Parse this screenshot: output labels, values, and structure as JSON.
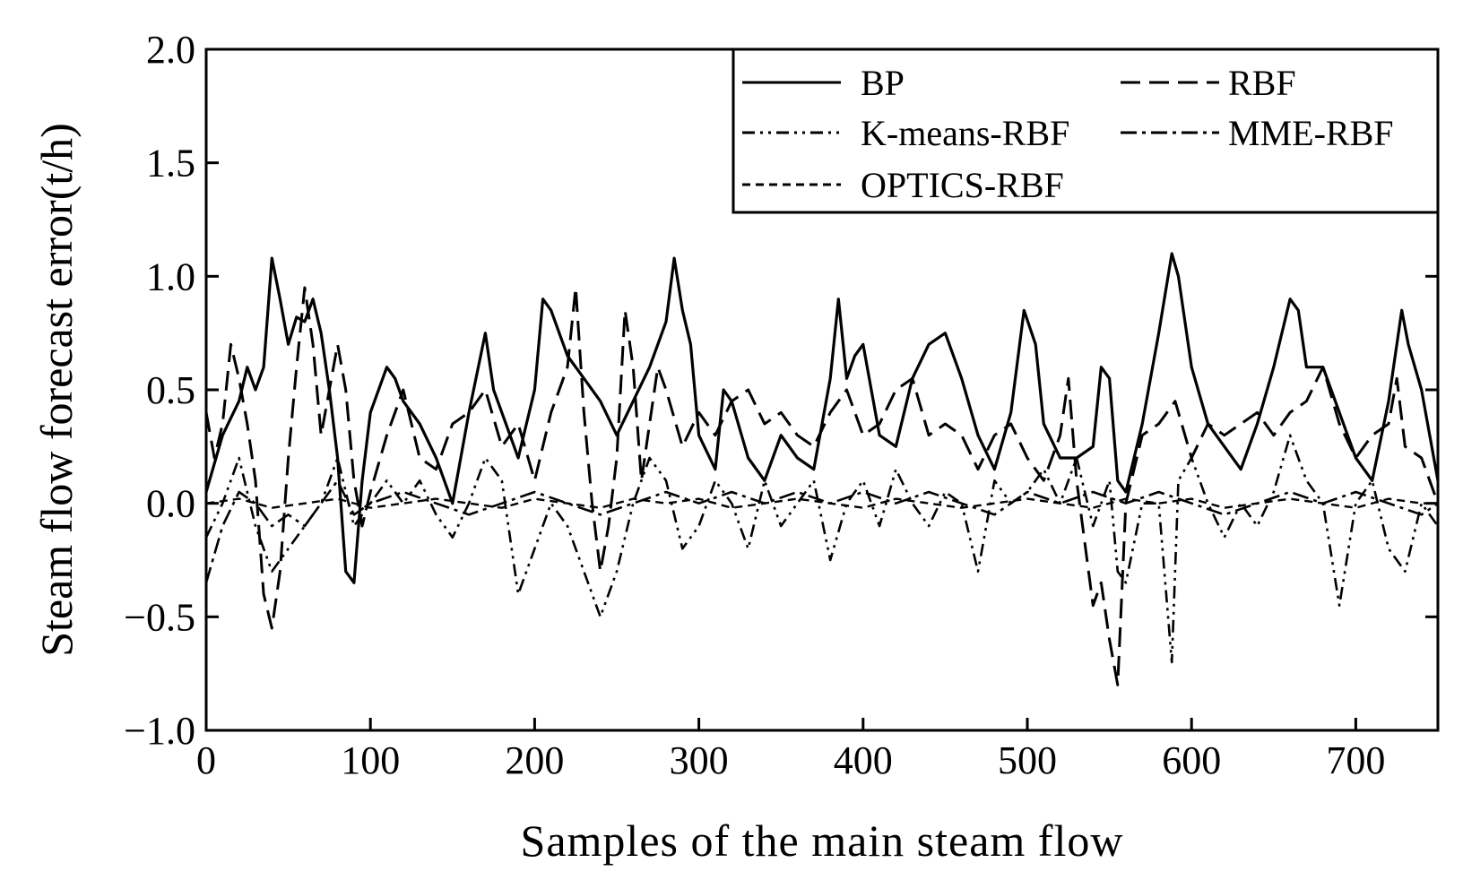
{
  "chart_data": {
    "type": "line",
    "title": "",
    "xlabel": "Samples of the main steam flow",
    "ylabel": "Steam flow forecast error(t/h)",
    "xlim": [
      0,
      750
    ],
    "ylim": [
      -1.0,
      2.0
    ],
    "xticks": [
      0,
      100,
      200,
      300,
      400,
      500,
      600,
      700
    ],
    "xtick_labels": [
      "0",
      "100",
      "200",
      "300",
      "400",
      "500",
      "600",
      "700"
    ],
    "yticks": [
      -1.0,
      -0.5,
      0.0,
      0.5,
      1.0,
      1.5,
      2.0
    ],
    "ytick_labels": [
      "−1.0",
      "−0.5",
      "0.0",
      "0.5",
      "1.0",
      "1.5",
      "2.0"
    ],
    "grid": false,
    "legend_position": "top-right",
    "series": [
      {
        "name": "BP",
        "style": "solid",
        "x": [
          0,
          10,
          20,
          25,
          30,
          35,
          40,
          45,
          50,
          55,
          60,
          65,
          70,
          75,
          80,
          85,
          90,
          95,
          100,
          110,
          115,
          120,
          130,
          140,
          150,
          160,
          170,
          175,
          180,
          190,
          200,
          205,
          210,
          220,
          230,
          240,
          250,
          260,
          270,
          280,
          285,
          290,
          295,
          300,
          310,
          315,
          320,
          330,
          340,
          350,
          360,
          370,
          380,
          385,
          390,
          395,
          400,
          410,
          420,
          430,
          440,
          450,
          460,
          470,
          480,
          490,
          498,
          505,
          510,
          520,
          530,
          540,
          545,
          550,
          555,
          560,
          570,
          580,
          588,
          592,
          600,
          610,
          620,
          630,
          640,
          650,
          660,
          665,
          670,
          680,
          690,
          700,
          710,
          720,
          728,
          732,
          740,
          750
        ],
        "values": [
          0.05,
          0.3,
          0.45,
          0.6,
          0.5,
          0.6,
          1.08,
          0.9,
          0.7,
          0.82,
          0.8,
          0.9,
          0.75,
          0.5,
          0.2,
          -0.3,
          -0.35,
          0.1,
          0.4,
          0.6,
          0.55,
          0.45,
          0.35,
          0.2,
          0.0,
          0.4,
          0.75,
          0.5,
          0.4,
          0.2,
          0.5,
          0.9,
          0.85,
          0.65,
          0.55,
          0.45,
          0.3,
          0.45,
          0.6,
          0.8,
          1.08,
          0.85,
          0.7,
          0.3,
          0.15,
          0.5,
          0.45,
          0.2,
          0.1,
          0.3,
          0.2,
          0.15,
          0.55,
          0.9,
          0.55,
          0.65,
          0.7,
          0.3,
          0.25,
          0.55,
          0.7,
          0.75,
          0.55,
          0.3,
          0.15,
          0.4,
          0.85,
          0.7,
          0.35,
          0.2,
          0.2,
          0.25,
          0.6,
          0.55,
          0.1,
          0.05,
          0.35,
          0.75,
          1.1,
          1.0,
          0.6,
          0.35,
          0.25,
          0.15,
          0.35,
          0.6,
          0.9,
          0.85,
          0.6,
          0.6,
          0.4,
          0.2,
          0.1,
          0.45,
          0.85,
          0.7,
          0.5,
          0.1
        ]
      },
      {
        "name": "RBF",
        "style": "dashed",
        "x": [
          0,
          5,
          10,
          15,
          20,
          25,
          30,
          35,
          40,
          45,
          50,
          55,
          60,
          65,
          70,
          75,
          80,
          85,
          90,
          95,
          100,
          110,
          120,
          130,
          140,
          150,
          160,
          170,
          180,
          190,
          200,
          210,
          220,
          225,
          230,
          235,
          240,
          245,
          250,
          255,
          260,
          265,
          270,
          275,
          280,
          290,
          300,
          310,
          320,
          330,
          340,
          350,
          360,
          370,
          380,
          390,
          400,
          410,
          420,
          430,
          440,
          450,
          460,
          470,
          480,
          490,
          500,
          510,
          520,
          525,
          530,
          540,
          545,
          550,
          555,
          560,
          570,
          580,
          590,
          600,
          610,
          620,
          630,
          640,
          650,
          660,
          670,
          680,
          690,
          700,
          710,
          720,
          725,
          730,
          740,
          750
        ],
        "values": [
          0.4,
          0.2,
          0.35,
          0.7,
          0.55,
          0.35,
          0.1,
          -0.4,
          -0.55,
          -0.3,
          0.2,
          0.6,
          0.95,
          0.7,
          0.3,
          0.5,
          0.7,
          0.5,
          0.1,
          -0.1,
          0.05,
          0.3,
          0.5,
          0.2,
          0.15,
          0.35,
          0.4,
          0.5,
          0.25,
          0.35,
          0.1,
          0.4,
          0.6,
          0.95,
          0.4,
          0.0,
          -0.3,
          -0.1,
          0.2,
          0.85,
          0.6,
          0.1,
          0.35,
          0.6,
          0.5,
          0.25,
          0.4,
          0.3,
          0.45,
          0.5,
          0.35,
          0.4,
          0.3,
          0.25,
          0.4,
          0.5,
          0.3,
          0.35,
          0.5,
          0.55,
          0.3,
          0.35,
          0.3,
          0.15,
          0.3,
          0.35,
          0.2,
          0.1,
          0.3,
          0.55,
          0.1,
          -0.45,
          -0.35,
          -0.6,
          -0.8,
          0.0,
          0.3,
          0.35,
          0.45,
          0.2,
          0.35,
          0.3,
          0.35,
          0.4,
          0.3,
          0.4,
          0.45,
          0.6,
          0.35,
          0.2,
          0.3,
          0.35,
          0.55,
          0.25,
          0.2,
          0.0
        ]
      },
      {
        "name": "K-means-RBF",
        "style": "dash-dot-dot",
        "x": [
          0,
          10,
          20,
          30,
          40,
          50,
          60,
          70,
          80,
          90,
          100,
          110,
          120,
          130,
          140,
          150,
          160,
          170,
          180,
          190,
          200,
          210,
          220,
          230,
          240,
          250,
          260,
          270,
          280,
          290,
          300,
          310,
          320,
          330,
          340,
          350,
          360,
          370,
          380,
          390,
          400,
          410,
          420,
          430,
          440,
          450,
          460,
          470,
          480,
          490,
          500,
          510,
          520,
          530,
          540,
          550,
          555,
          560,
          570,
          580,
          588,
          592,
          600,
          610,
          620,
          630,
          640,
          650,
          660,
          670,
          680,
          690,
          700,
          710,
          720,
          730,
          740,
          750
        ],
        "values": [
          -0.15,
          0.0,
          0.2,
          -0.1,
          -0.3,
          -0.2,
          -0.1,
          0.0,
          0.2,
          -0.1,
          0.0,
          0.1,
          0.0,
          0.1,
          -0.05,
          -0.15,
          0.0,
          0.2,
          0.1,
          -0.4,
          -0.2,
          0.0,
          -0.1,
          -0.3,
          -0.5,
          -0.3,
          0.0,
          0.2,
          0.1,
          -0.2,
          -0.1,
          0.1,
          0.0,
          -0.2,
          0.1,
          -0.1,
          0.0,
          0.1,
          -0.25,
          0.0,
          0.1,
          -0.1,
          0.15,
          0.0,
          -0.1,
          0.05,
          0.0,
          -0.3,
          0.1,
          0.0,
          0.05,
          0.15,
          0.0,
          0.2,
          -0.1,
          0.1,
          -0.3,
          -0.35,
          0.0,
          0.0,
          -0.7,
          0.1,
          0.2,
          0.0,
          -0.15,
          0.0,
          -0.1,
          0.05,
          0.3,
          0.1,
          0.0,
          -0.45,
          0.0,
          0.1,
          -0.2,
          -0.3,
          0.0,
          -0.1
        ]
      },
      {
        "name": "MME-RBF",
        "style": "dash-dot",
        "x": [
          0,
          10,
          20,
          30,
          40,
          50,
          60,
          70,
          80,
          90,
          100,
          120,
          140,
          160,
          180,
          200,
          220,
          240,
          260,
          280,
          300,
          320,
          340,
          360,
          380,
          400,
          420,
          440,
          460,
          480,
          500,
          520,
          540,
          560,
          580,
          600,
          620,
          640,
          660,
          680,
          700,
          720,
          740,
          750
        ],
        "values": [
          -0.35,
          -0.1,
          0.05,
          0.0,
          -0.1,
          -0.05,
          -0.1,
          0.0,
          0.1,
          -0.05,
          0.0,
          0.05,
          0.0,
          -0.05,
          0.0,
          0.05,
          0.0,
          -0.05,
          0.0,
          0.05,
          0.0,
          0.05,
          0.0,
          0.05,
          0.0,
          0.05,
          0.0,
          0.05,
          0.0,
          -0.05,
          0.05,
          0.0,
          0.05,
          0.0,
          0.05,
          0.0,
          -0.05,
          0.0,
          0.05,
          0.0,
          0.05,
          0.0,
          -0.05,
          0.0
        ]
      },
      {
        "name": "OPTICS-RBF",
        "style": "short-dashed",
        "x": [
          0,
          20,
          40,
          60,
          80,
          100,
          120,
          140,
          160,
          180,
          200,
          220,
          240,
          260,
          280,
          300,
          320,
          340,
          360,
          380,
          400,
          420,
          440,
          460,
          480,
          500,
          520,
          540,
          560,
          580,
          600,
          620,
          640,
          660,
          680,
          700,
          720,
          740,
          750
        ],
        "values": [
          0.0,
          0.02,
          -0.02,
          0.0,
          0.02,
          -0.02,
          0.0,
          0.02,
          0.0,
          -0.02,
          0.02,
          0.0,
          -0.02,
          0.02,
          0.0,
          0.02,
          -0.02,
          0.0,
          0.02,
          0.0,
          -0.02,
          0.02,
          0.0,
          -0.02,
          0.0,
          0.02,
          0.0,
          -0.02,
          0.02,
          0.0,
          0.02,
          -0.02,
          0.0,
          0.02,
          0.0,
          -0.02,
          0.02,
          0.0,
          0.0
        ]
      }
    ]
  }
}
